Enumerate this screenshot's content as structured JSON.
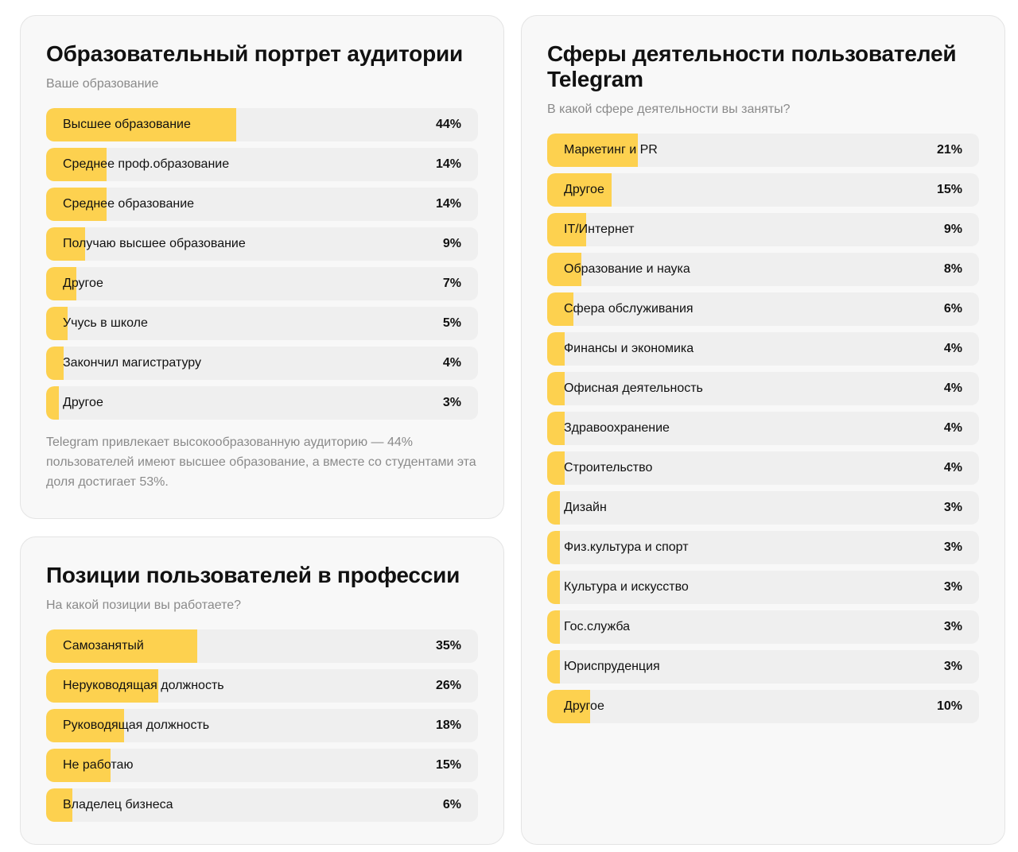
{
  "colors": {
    "bar": "#fdd14f",
    "track": "#efefef"
  },
  "education": {
    "title": "Образовательный портрет аудитории",
    "subtitle": "Ваше образование",
    "items": [
      {
        "label": "Высшее образование",
        "value": 44,
        "text": "44%"
      },
      {
        "label": "Среднее проф.образование",
        "value": 14,
        "text": "14%"
      },
      {
        "label": "Среднее образование",
        "value": 14,
        "text": "14%"
      },
      {
        "label": "Получаю высшее образование",
        "value": 9,
        "text": "9%"
      },
      {
        "label": "Другое",
        "value": 7,
        "text": "7%"
      },
      {
        "label": "Учусь в школе",
        "value": 5,
        "text": "5%"
      },
      {
        "label": "Закончил магистратуру",
        "value": 4,
        "text": "4%"
      },
      {
        "label": "Другое",
        "value": 3,
        "text": "3%"
      }
    ],
    "note": "Telegram привлекает высокообразованную аудиторию — 44% пользователей имеют высшее образование, а вместе со студентами эта доля достигает 53%."
  },
  "positions": {
    "title": "Позиции пользователей в профессии",
    "subtitle": "На какой позиции вы работаете?",
    "items": [
      {
        "label": "Самозанятый",
        "value": 35,
        "text": "35%"
      },
      {
        "label": "Неруководящая должность",
        "value": 26,
        "text": "26%"
      },
      {
        "label": "Руководящая должность",
        "value": 18,
        "text": "18%"
      },
      {
        "label": "Не работаю",
        "value": 15,
        "text": "15%"
      },
      {
        "label": "Владелец бизнеса",
        "value": 6,
        "text": "6%"
      }
    ]
  },
  "spheres": {
    "title": "Сферы деятельности пользователей Telegram",
    "subtitle": "В какой сфере деятельности вы заняты?",
    "items": [
      {
        "label": "Маркетинг и PR",
        "value": 21,
        "text": "21%"
      },
      {
        "label": "Другое",
        "value": 15,
        "text": "15%"
      },
      {
        "label": "IT/Интернет",
        "value": 9,
        "text": "9%"
      },
      {
        "label": "Образование и наука",
        "value": 8,
        "text": "8%"
      },
      {
        "label": "Сфера обслуживания",
        "value": 6,
        "text": "6%"
      },
      {
        "label": "Финансы и экономика",
        "value": 4,
        "text": "4%"
      },
      {
        "label": "Офисная деятельность",
        "value": 4,
        "text": "4%"
      },
      {
        "label": "Здравоохранение",
        "value": 4,
        "text": "4%"
      },
      {
        "label": "Строительство",
        "value": 4,
        "text": "4%"
      },
      {
        "label": "Дизайн",
        "value": 3,
        "text": "3%"
      },
      {
        "label": "Физ.культура и спорт",
        "value": 3,
        "text": "3%"
      },
      {
        "label": "Культура и искусство",
        "value": 3,
        "text": "3%"
      },
      {
        "label": "Гос.служба",
        "value": 3,
        "text": "3%"
      },
      {
        "label": "Юриспруденция",
        "value": 3,
        "text": "3%"
      },
      {
        "label": "Другое",
        "value": 10,
        "text": "10%"
      }
    ]
  }
}
